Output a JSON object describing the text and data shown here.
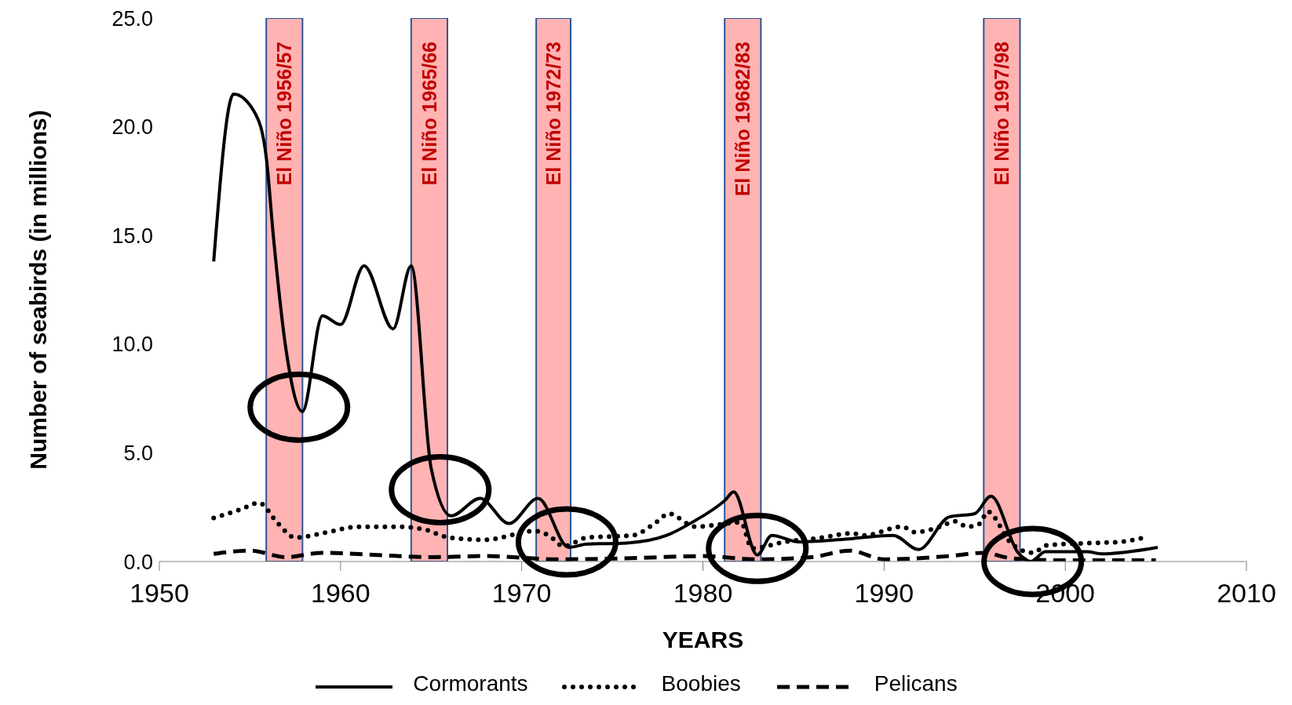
{
  "chart_data": {
    "type": "line",
    "xlabel": "YEARS",
    "ylabel": "Number of seabirds (in millions)",
    "xlim": [
      1950,
      2010
    ],
    "xticks": [
      1950,
      1960,
      1970,
      1980,
      1990,
      2000,
      2010
    ],
    "ylim": [
      0,
      25
    ],
    "yticks": [
      {
        "value": 0,
        "label": "0.0"
      },
      {
        "value": 5,
        "label": "5.0"
      },
      {
        "value": 10,
        "label": "10.0"
      },
      {
        "value": 15,
        "label": "15.0"
      },
      {
        "value": 20,
        "label": "20.0"
      },
      {
        "value": 25,
        "label": "25.0"
      }
    ],
    "grid": false,
    "legend": "bottom",
    "marker": "none",
    "series": [
      {
        "name": "Cormorants",
        "color": "#000000",
        "line_style": "solid",
        "x": [
          1953.0,
          1954.1,
          1955.3,
          1955.9,
          1956.3,
          1957.0,
          1957.9,
          1959.0,
          1960.0,
          1961.3,
          1962.9,
          1963.9,
          1965.0,
          1966.1,
          1967.7,
          1969.3,
          1970.9,
          1972.6,
          1973.6,
          1975.8,
          1978.0,
          1979.4,
          1981.2,
          1981.7,
          1983.0,
          1983.8,
          1985.3,
          1988.2,
          1990.5,
          1991.9,
          1993.6,
          1995.0,
          1995.9,
          1997.4,
          1998.1,
          1998.9,
          2001.2,
          2002.0,
          2005.1
        ],
        "values": [
          13.8,
          21.5,
          20.6,
          18.6,
          14.9,
          9.7,
          6.9,
          11.3,
          10.9,
          13.6,
          10.7,
          13.6,
          4.3,
          2.1,
          2.9,
          1.75,
          2.9,
          0.65,
          0.8,
          0.85,
          1.2,
          1.8,
          2.8,
          3.2,
          0.3,
          1.2,
          0.9,
          1.05,
          1.2,
          0.55,
          2.05,
          2.2,
          3.0,
          0.4,
          0.0,
          0.45,
          0.45,
          0.35,
          0.65
        ]
      },
      {
        "name": "Boobies",
        "color": "#000000",
        "line_style": "dotted",
        "x": [
          1953.0,
          1954.5,
          1955.5,
          1956.5,
          1957.5,
          1959.0,
          1961.0,
          1963.0,
          1964.5,
          1966.0,
          1968.0,
          1970.7,
          1971.5,
          1972.3,
          1973.6,
          1976.1,
          1977.5,
          1978.1,
          1979.6,
          1980.4,
          1982.1,
          1982.7,
          1984.5,
          1986.6,
          1988.2,
          1988.9,
          1991.0,
          1991.7,
          1993.1,
          1993.9,
          1994.6,
          1995.3,
          1995.7,
          1997.0,
          1998.2,
          1999.0,
          2001.4,
          2003.0,
          2004.6
        ],
        "values": [
          2.0,
          2.4,
          2.7,
          1.8,
          1.1,
          1.3,
          1.6,
          1.6,
          1.5,
          1.1,
          1.0,
          1.4,
          1.2,
          0.7,
          1.1,
          1.2,
          1.85,
          2.2,
          1.6,
          1.65,
          1.8,
          0.6,
          0.9,
          1.1,
          1.3,
          1.2,
          1.6,
          1.35,
          1.6,
          1.85,
          1.6,
          1.75,
          2.3,
          0.85,
          0.4,
          0.75,
          0.85,
          0.9,
          1.15
        ]
      },
      {
        "name": "Pelicans",
        "color": "#000000",
        "line_style": "dashed",
        "x": [
          1953.0,
          1955.0,
          1957.0,
          1959.0,
          1962.0,
          1965.0,
          1968.0,
          1972.0,
          1976.0,
          1980.0,
          1983.0,
          1986.0,
          1988.1,
          1990.0,
          1993.6,
          1995.5,
          1997.0,
          2000.0,
          2005.0
        ],
        "values": [
          0.35,
          0.5,
          0.2,
          0.4,
          0.3,
          0.2,
          0.25,
          0.1,
          0.15,
          0.25,
          0.1,
          0.2,
          0.5,
          0.1,
          0.25,
          0.4,
          0.15,
          0.05,
          0.05
        ]
      }
    ],
    "bands": [
      {
        "axis": "x",
        "from": 1955.9,
        "to": 1957.9,
        "label": "El Niño 1956/57",
        "color": "#ffb3b3"
      },
      {
        "axis": "x",
        "from": 1963.9,
        "to": 1965.9,
        "label": "El Niño 1965/66",
        "color": "#ffb3b3"
      },
      {
        "axis": "x",
        "from": 1970.8,
        "to": 1972.7,
        "label": "El Niño 1972/73",
        "color": "#ffb3b3"
      },
      {
        "axis": "x",
        "from": 1981.2,
        "to": 1983.2,
        "label": "El Niño 19682/83",
        "color": "#ffb3b3"
      },
      {
        "axis": "x",
        "from": 1995.5,
        "to": 1997.5,
        "label": "El Niño 1997/98",
        "color": "#ffb3b3"
      }
    ]
  }
}
